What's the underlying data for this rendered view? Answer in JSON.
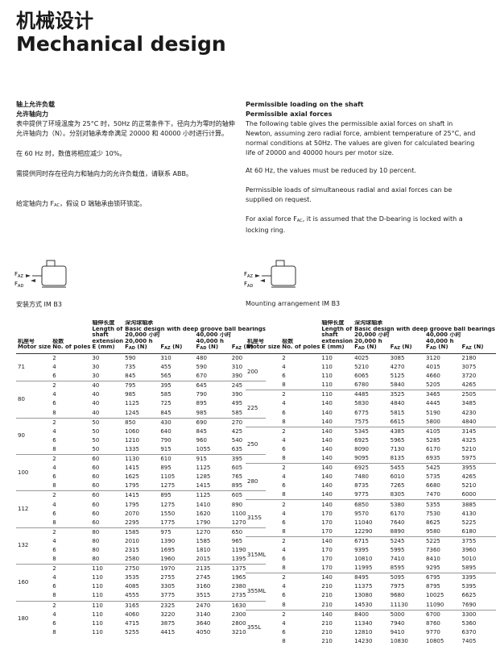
{
  "header": {
    "title_cn": "机械设计",
    "title_en": "Mechanical design"
  },
  "left_text": {
    "heading": "轴上允许负载",
    "subheading": "允许轴向力",
    "p1": "表中提供了环境温度为 25°C 时，50Hz 的正常条件下，径向力为零时的轴伸允许轴向力（N）。分别对轴承寿命满足 20000 和 40000 小时进行计算。",
    "p2": "在 60 Hz 时，数值将相应减少 10%。",
    "p3": "需提供同时存在径向力和轴向力的允许负载值，请联系 ABB。",
    "p4_before": "给定轴向力 F",
    "p4_sub": "AC",
    "p4_after": "，假设 D 端轴承由锁环锁定。",
    "caption": "安装方式 IM B3"
  },
  "right_text": {
    "heading": "Permissible loading on the shaft",
    "subheading": "Permissible axial forces",
    "p1": "The following table gives the permissible axial forces on shaft in Newton, assuming zero radial force, ambient temperature of 25°C, and normal conditions at 50Hz. The values are given for calculated bearing life of 20000 and 40000 hours per motor size.",
    "p2": "At 60 Hz, the values must be reduced by 10 percent.",
    "p3": "Permissible loads of simultaneous radial and axial forces can be supplied on request.",
    "p4_before": "For axial force F",
    "p4_sub": "AC",
    "p4_after": ", it is assumed that the D-bearing is locked with a locking ring.",
    "caption": "Mounting arrangement IM B3"
  },
  "figure": {
    "labels": [
      {
        "main": "F",
        "sub": "AZ"
      },
      {
        "main": "F",
        "sub": "AD"
      }
    ]
  },
  "columns": {
    "size_cn": "机座号",
    "size_en": "Motor size",
    "poles_cn": "极数",
    "poles_en": "No. of poles",
    "length_cn": "轴伸长度",
    "length_en": "Length of shaft extension",
    "length_unit": "E (mm)",
    "bearing_cn": "深沟球轴承",
    "bearing_en": "Basic design with deep groove ball bearings",
    "life1_cn": "20,000 小时",
    "life1_en": "20,000 h",
    "life2_cn": "40,000 小时",
    "life2_en": "40,000 h",
    "forces": [
      {
        "main": "F",
        "sub": "AD",
        "unit": "(N)"
      },
      {
        "main": "F",
        "sub": "AZ",
        "unit": "(N)"
      },
      {
        "main": "F",
        "sub": "AD",
        "unit": "(N)"
      },
      {
        "main": "F",
        "sub": "AZ",
        "unit": "(N)"
      }
    ]
  },
  "tables": [
    [
      {
        "size": "71",
        "rows": [
          [
            2,
            30,
            590,
            310,
            480,
            200
          ],
          [
            4,
            30,
            735,
            455,
            590,
            310
          ],
          [
            6,
            30,
            845,
            565,
            670,
            390
          ]
        ]
      },
      {
        "size": "80",
        "rows": [
          [
            2,
            40,
            795,
            395,
            645,
            245
          ],
          [
            4,
            40,
            985,
            585,
            790,
            390
          ],
          [
            6,
            40,
            1125,
            725,
            895,
            495
          ],
          [
            8,
            40,
            1245,
            845,
            985,
            585
          ]
        ]
      },
      {
        "size": "90",
        "rows": [
          [
            2,
            50,
            850,
            430,
            690,
            270
          ],
          [
            4,
            50,
            1060,
            640,
            845,
            425
          ],
          [
            6,
            50,
            1210,
            790,
            960,
            540
          ],
          [
            8,
            50,
            1335,
            915,
            1055,
            635
          ]
        ]
      },
      {
        "size": "100",
        "rows": [
          [
            2,
            60,
            1130,
            610,
            915,
            395
          ],
          [
            4,
            60,
            1415,
            895,
            1125,
            605
          ],
          [
            6,
            60,
            1625,
            1105,
            1285,
            765
          ],
          [
            8,
            60,
            1795,
            1275,
            1415,
            895
          ]
        ]
      },
      {
        "size": "112",
        "rows": [
          [
            2,
            60,
            1415,
            895,
            1125,
            605
          ],
          [
            4,
            60,
            1795,
            1275,
            1410,
            890
          ],
          [
            6,
            60,
            2070,
            1550,
            1620,
            1100
          ],
          [
            8,
            60,
            2295,
            1775,
            1790,
            1270
          ]
        ]
      },
      {
        "size": "132",
        "rows": [
          [
            2,
            80,
            1585,
            975,
            1270,
            650
          ],
          [
            4,
            80,
            2010,
            1390,
            1585,
            965
          ],
          [
            6,
            80,
            2315,
            1695,
            1810,
            1190
          ],
          [
            8,
            80,
            2580,
            1960,
            2015,
            1395
          ]
        ]
      },
      {
        "size": "160",
        "rows": [
          [
            2,
            110,
            2750,
            1970,
            2135,
            1375
          ],
          [
            4,
            110,
            3535,
            2755,
            2745,
            1965
          ],
          [
            6,
            110,
            4085,
            3305,
            3160,
            2380
          ],
          [
            8,
            110,
            4555,
            3775,
            3515,
            2735
          ]
        ]
      },
      {
        "size": "180",
        "rows": [
          [
            2,
            110,
            3165,
            2325,
            2470,
            1630
          ],
          [
            4,
            110,
            4060,
            3220,
            3140,
            2300
          ],
          [
            6,
            110,
            4715,
            3875,
            3640,
            2800
          ],
          [
            8,
            110,
            5255,
            4415,
            4050,
            3210
          ]
        ]
      }
    ],
    [
      {
        "size": "200",
        "rows": [
          [
            2,
            110,
            4025,
            3085,
            3120,
            2180
          ],
          [
            4,
            110,
            5210,
            4270,
            4015,
            3075
          ],
          [
            6,
            110,
            6065,
            5125,
            4660,
            3720
          ],
          [
            8,
            110,
            6780,
            5840,
            5205,
            4265
          ]
        ]
      },
      {
        "size": "225",
        "rows": [
          [
            2,
            110,
            4485,
            3525,
            3465,
            2505
          ],
          [
            4,
            140,
            5830,
            4840,
            4445,
            3485
          ],
          [
            6,
            140,
            6775,
            5815,
            5190,
            4230
          ],
          [
            8,
            140,
            7575,
            6615,
            5800,
            4840
          ]
        ]
      },
      {
        "size": "250",
        "rows": [
          [
            2,
            140,
            5345,
            4385,
            4105,
            3145
          ],
          [
            4,
            140,
            6925,
            5965,
            5285,
            4325
          ],
          [
            6,
            140,
            8090,
            7130,
            6170,
            5210
          ],
          [
            8,
            140,
            9095,
            8135,
            6935,
            5975
          ]
        ]
      },
      {
        "size": "280",
        "rows": [
          [
            2,
            140,
            6925,
            5455,
            5425,
            3955
          ],
          [
            4,
            140,
            7480,
            6010,
            5735,
            4265
          ],
          [
            6,
            140,
            8735,
            7265,
            6680,
            5210
          ],
          [
            8,
            140,
            9775,
            8305,
            7470,
            6000
          ]
        ]
      },
      {
        "size": "315S",
        "rows": [
          [
            2,
            140,
            6850,
            5380,
            5355,
            3885
          ],
          [
            4,
            170,
            9570,
            6170,
            7530,
            4130
          ],
          [
            6,
            170,
            11040,
            7640,
            8625,
            5225
          ],
          [
            8,
            170,
            12290,
            8890,
            9580,
            6180
          ]
        ]
      },
      {
        "size": "315ML",
        "rows": [
          [
            2,
            140,
            6715,
            5245,
            5225,
            3755
          ],
          [
            4,
            170,
            9395,
            5995,
            7360,
            3960
          ],
          [
            6,
            170,
            10810,
            7410,
            8410,
            5010
          ],
          [
            8,
            170,
            11995,
            8595,
            9295,
            5895
          ]
        ]
      },
      {
        "size": "355ML",
        "rows": [
          [
            2,
            140,
            8495,
            5095,
            6795,
            3395
          ],
          [
            4,
            210,
            11375,
            7975,
            8795,
            5395
          ],
          [
            6,
            210,
            13080,
            9680,
            10025,
            6625
          ],
          [
            8,
            210,
            14530,
            11130,
            11090,
            7690
          ]
        ]
      },
      {
        "size": "355L",
        "rows": [
          [
            2,
            140,
            8400,
            5000,
            6700,
            3300
          ],
          [
            4,
            210,
            11340,
            7940,
            8760,
            5360
          ],
          [
            6,
            210,
            12810,
            9410,
            9770,
            6370
          ],
          [
            8,
            210,
            14230,
            10830,
            10805,
            7405
          ]
        ]
      }
    ]
  ]
}
